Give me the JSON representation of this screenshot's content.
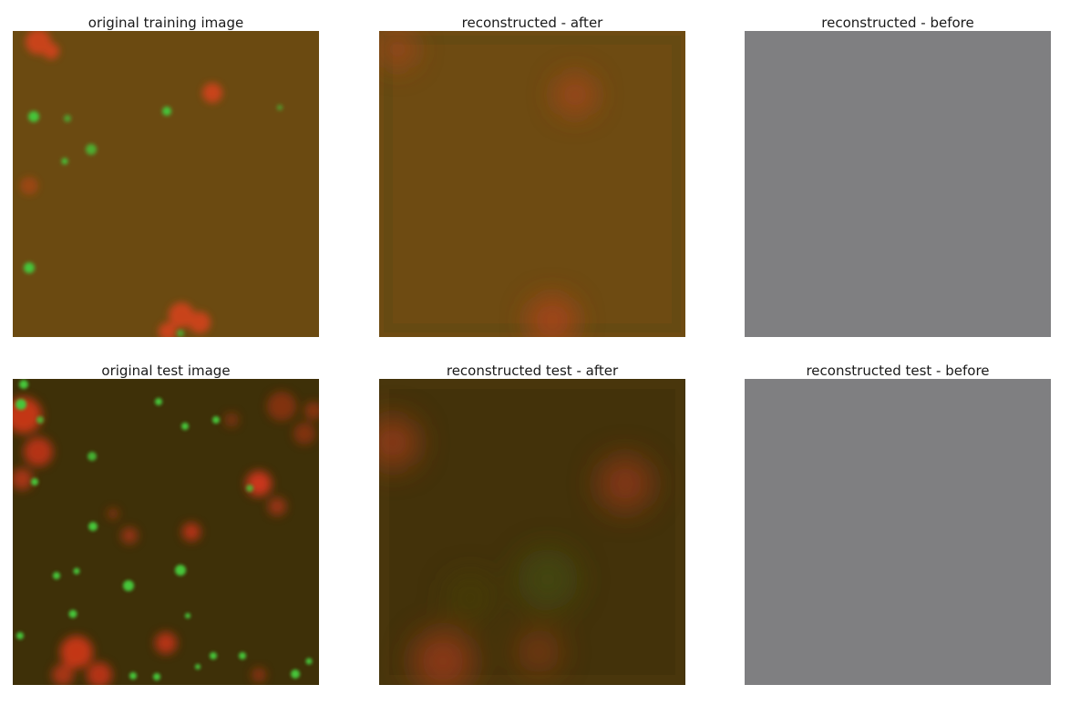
{
  "figure": {
    "panels": [
      {
        "title": "original training image"
      },
      {
        "title": "reconstructed - after"
      },
      {
        "title": "reconstructed - before"
      },
      {
        "title": "original test image"
      },
      {
        "title": "reconstructed test - after"
      },
      {
        "title": "reconstructed test - before"
      }
    ]
  },
  "colors": {
    "training_background": "#6b4a11",
    "test_background": "#3e3008",
    "reconstructed_training_background": "#6e4b12",
    "reconstructed_test_background": "#43320a",
    "grey_output": "#7f7f81",
    "green_cell": "#3fd03a",
    "red_cell": "#e0421f"
  }
}
